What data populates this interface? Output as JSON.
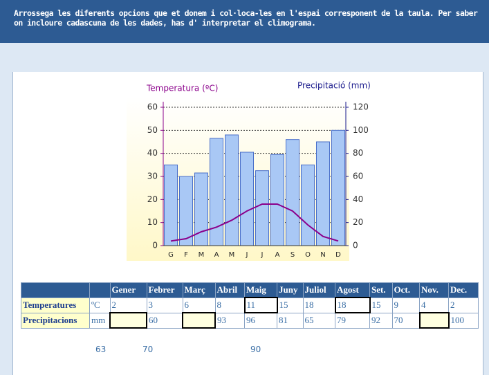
{
  "instructions": "Arrossega les diferents opcions que et donem i col·loca-les en l'espai corresponent de la taula. Per saber on incloure cadascuna de les dades, has d' interpretar el climograma.",
  "chart_data": {
    "type": "bar",
    "ylabel": "Temperatura (ºC)",
    "y2label": "Precipitació (mm)",
    "categories": [
      "G",
      "F",
      "M",
      "A",
      "M",
      "J",
      "J",
      "A",
      "S",
      "O",
      "N",
      "D"
    ],
    "series": [
      {
        "type": "bar",
        "axis": "y2",
        "color": "#a9c8f5",
        "values": [
          70,
          60,
          63,
          93,
          96,
          81,
          65,
          79,
          92,
          70,
          90,
          100
        ]
      },
      {
        "type": "line",
        "axis": "y",
        "color": "#8b008b",
        "values": [
          2,
          3,
          6,
          8,
          11,
          15,
          18,
          18,
          15,
          9,
          4,
          2
        ]
      }
    ],
    "ylim": [
      0,
      60
    ],
    "yticks": [
      0,
      10,
      20,
      30,
      40,
      50,
      60
    ],
    "y2lim": [
      0,
      120
    ],
    "y2ticks": [
      0,
      20,
      40,
      60,
      80,
      100,
      120
    ],
    "grid": true
  },
  "table": {
    "months": [
      "Gener",
      "Febrer",
      "Març",
      "Abril",
      "Maig",
      "Juny",
      "Juliol",
      "Agost",
      "Set.",
      "Oct.",
      "Nov.",
      "Dec."
    ],
    "rows": [
      {
        "label": "Temperatures",
        "unit": "ºC",
        "cells": [
          2,
          3,
          6,
          8,
          11,
          15,
          18,
          18,
          15,
          9,
          4,
          2
        ]
      },
      {
        "label": "Precipitacions",
        "unit": "mm",
        "cells": [
          null,
          60,
          null,
          93,
          96,
          81,
          65,
          79,
          92,
          70,
          null,
          100
        ]
      }
    ]
  },
  "options": [
    63,
    70,
    90
  ]
}
